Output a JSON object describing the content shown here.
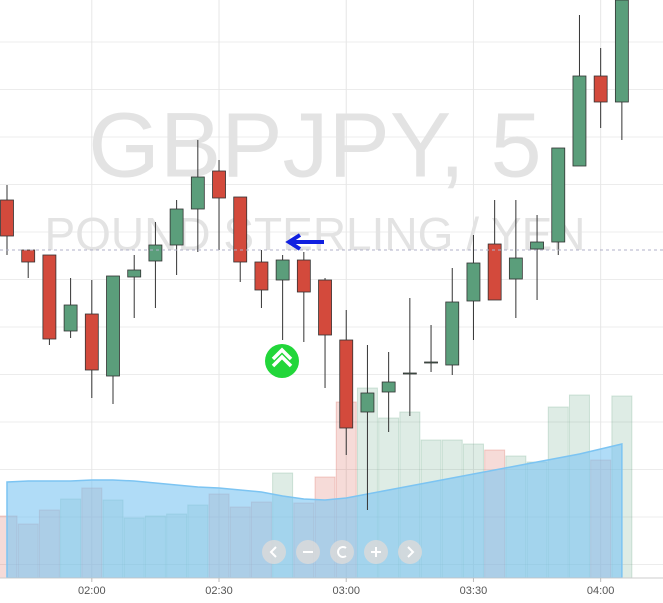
{
  "chart_data": {
    "type": "candlestick",
    "title": "GBPJPY, 5",
    "subtitle": "POUND STERLING / YEN",
    "x": [
      0,
      1,
      2,
      3,
      4,
      5,
      6,
      7,
      8,
      9,
      10,
      11,
      12,
      13,
      14,
      15,
      16,
      17,
      18,
      19,
      20,
      21,
      22,
      23,
      24,
      25,
      26,
      27,
      28,
      29
    ],
    "open": [
      378,
      328,
      323,
      247,
      264,
      202,
      301,
      317,
      333,
      369,
      407,
      381,
      316,
      298,
      318,
      298,
      238,
      166,
      186,
      205,
      216,
      213,
      277,
      334,
      299,
      329,
      336,
      412,
      502,
      476
    ],
    "high": [
      393,
      328,
      323,
      300,
      298,
      302,
      323,
      356,
      378,
      438,
      418,
      381,
      328,
      323,
      326,
      300,
      268,
      233,
      226,
      280,
      253,
      310,
      343,
      378,
      378,
      363,
      430,
      563,
      530,
      578
    ],
    "low": [
      323,
      300,
      233,
      240,
      180,
      174,
      260,
      270,
      303,
      326,
      328,
      296,
      270,
      238,
      236,
      190,
      123,
      68,
      146,
      162,
      206,
      203,
      238,
      278,
      260,
      278,
      323,
      412,
      450,
      438
    ],
    "close": [
      342,
      316,
      239,
      273,
      208,
      302,
      308,
      333,
      369,
      401,
      380,
      316,
      288,
      318,
      286,
      243,
      150,
      185,
      196,
      205,
      216,
      276,
      315,
      278,
      320,
      336,
      430,
      502,
      476,
      578
    ],
    "volume": [
      62,
      54,
      68,
      79,
      90,
      78,
      60,
      62,
      64,
      73,
      84,
      71,
      76,
      105,
      75,
      101,
      176,
      190,
      160,
      166,
      138,
      138,
      134,
      128,
      122,
      116,
      171,
      183,
      118,
      182
    ],
    "volume_ma": [
      96,
      97,
      97,
      97,
      98,
      98,
      97,
      95,
      93,
      91,
      90,
      88,
      86,
      82,
      79,
      78,
      80,
      84,
      88,
      92,
      96,
      100,
      104,
      108,
      112,
      116,
      120,
      124,
      129,
      134
    ],
    "up_color": "#5b9e7b",
    "down_color": "#d34a3c",
    "ma_color": "#7cc4f2",
    "ylim": [
      0,
      578
    ],
    "xlim": [
      -0.33,
      30.94
    ],
    "xticks": [
      {
        "value": 4,
        "label": "02:00"
      },
      {
        "value": 10,
        "label": "02:30"
      },
      {
        "value": 16,
        "label": "03:00"
      },
      {
        "value": 22,
        "label": "03:30"
      },
      {
        "value": 28,
        "label": "04:00"
      }
    ],
    "grid": true
  }
}
